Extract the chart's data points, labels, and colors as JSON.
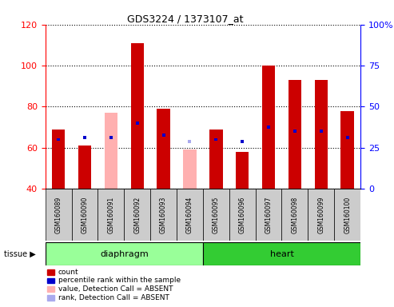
{
  "title": "GDS3224 / 1373107_at",
  "samples": [
    "GSM160089",
    "GSM160090",
    "GSM160091",
    "GSM160092",
    "GSM160093",
    "GSM160094",
    "GSM160095",
    "GSM160096",
    "GSM160097",
    "GSM160098",
    "GSM160099",
    "GSM160100"
  ],
  "count_values": [
    69,
    61,
    null,
    111,
    79,
    null,
    69,
    58,
    100,
    93,
    93,
    78
  ],
  "count_absent": [
    null,
    null,
    77,
    null,
    null,
    59,
    null,
    null,
    null,
    null,
    null,
    null
  ],
  "rank_present": [
    64,
    65,
    65,
    72,
    66,
    null,
    64,
    63,
    70,
    68,
    68,
    65
  ],
  "rank_absent": [
    null,
    null,
    null,
    null,
    null,
    63,
    null,
    null,
    null,
    null,
    null,
    null
  ],
  "diaphragm_indices": [
    0,
    1,
    2,
    3,
    4,
    5
  ],
  "heart_indices": [
    6,
    7,
    8,
    9,
    10,
    11
  ],
  "ylim_left": [
    40,
    120
  ],
  "ylim_right": [
    0,
    100
  ],
  "yticks_left": [
    40,
    60,
    80,
    100,
    120
  ],
  "yticks_right": [
    0,
    25,
    50,
    75,
    100
  ],
  "red_color": "#CC0000",
  "pink_color": "#FFB0B0",
  "blue_color": "#0000CC",
  "lightblue_color": "#AAAAEE",
  "diaphragm_color": "#99FF99",
  "heart_color": "#33CC33",
  "bg_color": "#CCCCCC",
  "legend_entries": [
    "count",
    "percentile rank within the sample",
    "value, Detection Call = ABSENT",
    "rank, Detection Call = ABSENT"
  ]
}
